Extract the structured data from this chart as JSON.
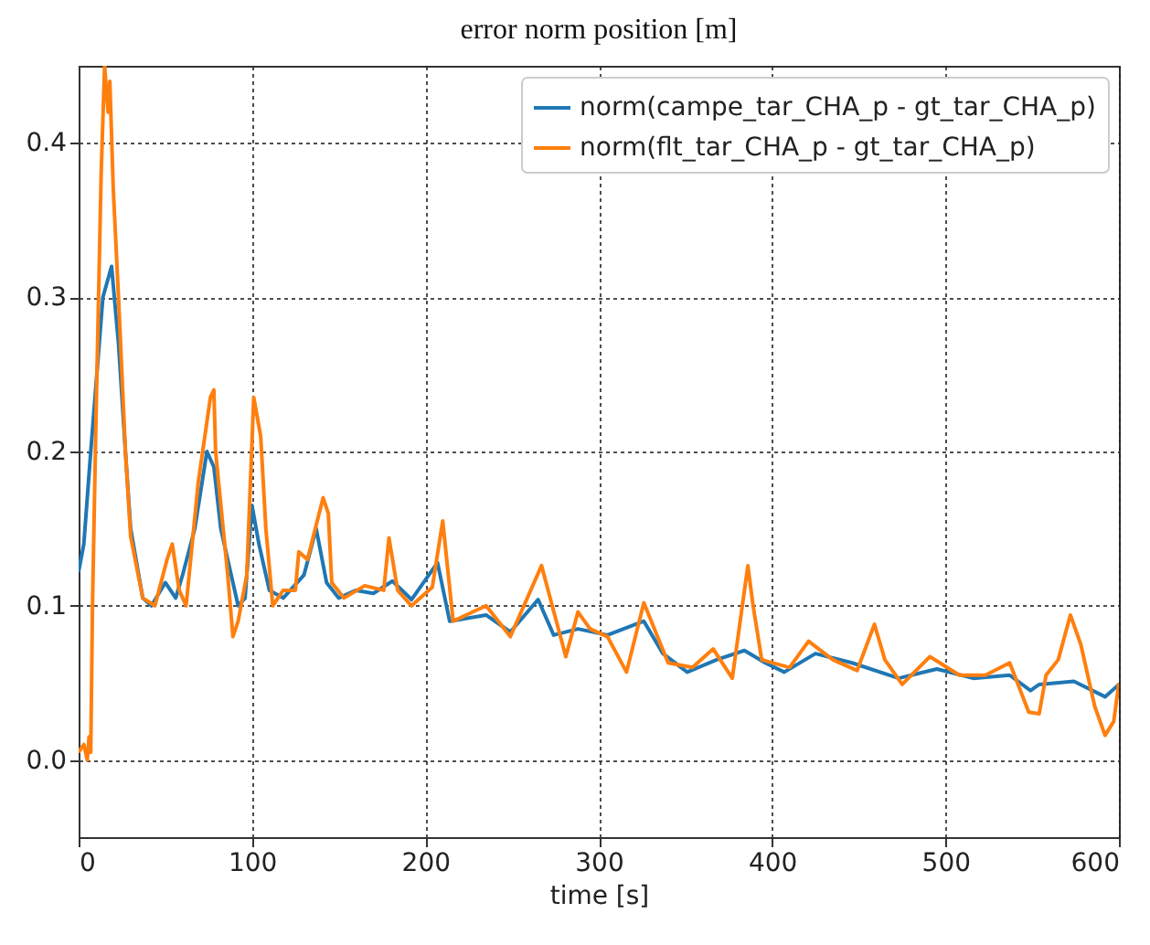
{
  "chart_data": {
    "type": "line",
    "title": "error norm position [m]",
    "xlabel": "time [s]",
    "xlim": [
      0,
      600
    ],
    "xticks": [
      0,
      100,
      200,
      300,
      400,
      500,
      600
    ],
    "ylim": [
      -0.05,
      0.45
    ],
    "yticks": [
      {
        "value": 0,
        "label": "0.0"
      },
      {
        "value": 0.1,
        "label": "0.1"
      },
      {
        "value": 0.2,
        "label": "0.2"
      },
      {
        "value": 0.3,
        "label": "0.3"
      },
      {
        "value": 0.4,
        "label": "0.4"
      }
    ],
    "grid": true,
    "legend": "top right",
    "series": [
      {
        "name": "norm(campe_tar_CHA_p - gt_tar_CHA_p)",
        "color": "#1f77b4",
        "x": [
          0,
          3,
          7,
          14,
          19,
          23,
          27,
          30,
          37,
          42,
          50,
          56,
          60,
          67,
          74,
          78,
          82,
          92,
          96,
          100,
          104,
          110,
          118,
          130,
          137,
          143,
          150,
          160,
          170,
          181,
          192,
          207,
          214,
          235,
          249,
          265,
          274,
          288,
          305,
          326,
          337,
          351,
          368,
          384,
          396,
          407,
          425,
          446,
          473,
          495,
          516,
          537,
          549,
          554,
          574,
          592,
          600
        ],
        "values": [
          0.122,
          0.14,
          0.2,
          0.3,
          0.32,
          0.27,
          0.2,
          0.15,
          0.105,
          0.1,
          0.115,
          0.105,
          0.12,
          0.15,
          0.2,
          0.19,
          0.15,
          0.1,
          0.105,
          0.165,
          0.14,
          0.11,
          0.105,
          0.12,
          0.15,
          0.115,
          0.105,
          0.11,
          0.108,
          0.116,
          0.104,
          0.128,
          0.09,
          0.094,
          0.083,
          0.104,
          0.081,
          0.085,
          0.081,
          0.09,
          0.069,
          0.057,
          0.065,
          0.071,
          0.063,
          0.057,
          0.069,
          0.063,
          0.053,
          0.059,
          0.053,
          0.055,
          0.045,
          0.049,
          0.051,
          0.041,
          0.049
        ]
      },
      {
        "name": "norm(flt_tar_CHA_p - gt_tar_CHA_p)",
        "color": "#ff7f0e",
        "x": [
          0,
          3,
          5,
          6,
          7,
          8,
          10,
          13,
          15,
          17,
          18,
          20,
          23,
          27,
          30,
          37,
          44,
          51,
          54,
          58,
          62,
          69,
          76,
          78,
          79,
          86,
          89,
          92,
          97,
          101,
          105,
          108,
          112,
          118,
          125,
          127,
          132,
          141,
          144,
          146,
          153,
          165,
          176,
          179,
          184,
          192,
          204,
          210,
          216,
          235,
          249,
          267,
          281,
          288,
          295,
          305,
          316,
          326,
          340,
          354,
          366,
          377,
          386,
          389,
          394,
          410,
          421,
          435,
          449,
          459,
          465,
          475,
          491,
          508,
          523,
          537,
          548,
          554,
          558,
          565,
          572,
          578,
          586,
          592,
          597,
          600
        ],
        "values": [
          0.005,
          0.01,
          0.0,
          0.015,
          0.005,
          0.1,
          0.22,
          0.38,
          0.45,
          0.42,
          0.44,
          0.37,
          0.3,
          0.2,
          0.145,
          0.105,
          0.1,
          0.13,
          0.14,
          0.11,
          0.1,
          0.18,
          0.235,
          0.24,
          0.2,
          0.12,
          0.08,
          0.09,
          0.12,
          0.235,
          0.21,
          0.15,
          0.1,
          0.11,
          0.11,
          0.135,
          0.13,
          0.17,
          0.16,
          0.115,
          0.105,
          0.113,
          0.11,
          0.144,
          0.11,
          0.1,
          0.112,
          0.155,
          0.09,
          0.1,
          0.08,
          0.126,
          0.067,
          0.096,
          0.085,
          0.08,
          0.057,
          0.102,
          0.063,
          0.06,
          0.072,
          0.053,
          0.126,
          0.1,
          0.065,
          0.06,
          0.077,
          0.065,
          0.058,
          0.088,
          0.065,
          0.049,
          0.067,
          0.055,
          0.055,
          0.063,
          0.031,
          0.03,
          0.055,
          0.065,
          0.094,
          0.075,
          0.035,
          0.016,
          0.025,
          0.05
        ]
      }
    ]
  }
}
